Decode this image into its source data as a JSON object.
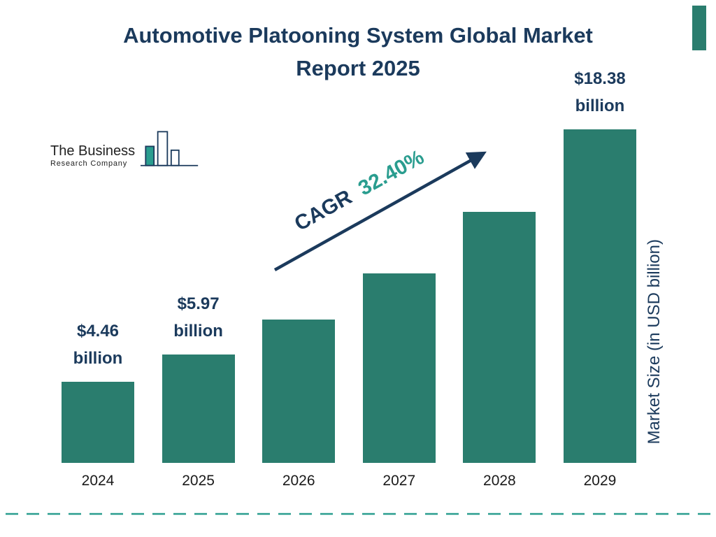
{
  "page": {
    "title": "Automotive Platooning System Global Market Report 2025"
  },
  "logo": {
    "name": "The Business",
    "subname": "Research Company"
  },
  "cagr": {
    "label": "CAGR",
    "value": "32.40%"
  },
  "colors": {
    "bar_teal": "#2a7d6e",
    "accent_teal": "#2a9d8f",
    "navy": "#1b3a5c"
  },
  "chart_data": {
    "type": "bar",
    "title": "Automotive Platooning System Global Market Report 2025",
    "ylabel": "Market Size (in USD billion)",
    "categories": [
      "2024",
      "2025",
      "2026",
      "2027",
      "2028",
      "2029"
    ],
    "values": [
      4.46,
      5.97,
      7.9,
      10.46,
      13.85,
      18.38
    ],
    "value_labels": [
      {
        "index": 0,
        "amount": "$4.46",
        "unit": "billion"
      },
      {
        "index": 1,
        "amount": "$5.97",
        "unit": "billion"
      },
      {
        "index": 5,
        "amount": "$18.38",
        "unit": "billion"
      }
    ],
    "cagr_annotation": "CAGR 32.40%",
    "unit": "USD billion",
    "ylim": [
      0,
      20
    ],
    "grid": false,
    "legend": false
  }
}
